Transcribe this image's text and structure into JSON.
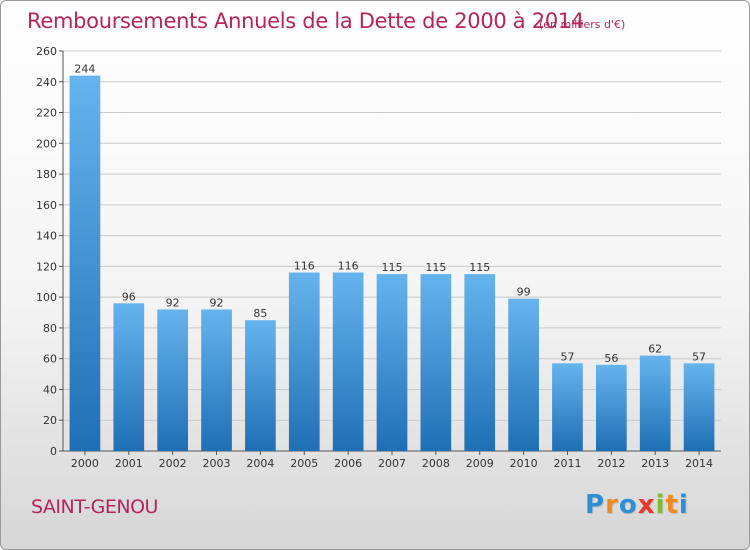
{
  "chart_data": {
    "type": "bar",
    "title": "Remboursements Annuels de la Dette de 2000 à 2014",
    "subtitle": "(en milliers d'€)",
    "categories": [
      "2000",
      "2001",
      "2002",
      "2003",
      "2004",
      "2005",
      "2006",
      "2007",
      "2008",
      "2009",
      "2010",
      "2011",
      "2012",
      "2013",
      "2014"
    ],
    "values": [
      244,
      96,
      92,
      92,
      85,
      116,
      116,
      115,
      115,
      115,
      99,
      57,
      56,
      62,
      57
    ],
    "data_labels": [
      "244",
      "96",
      "92",
      "92",
      "85",
      "116",
      "116",
      "115",
      "115",
      "115",
      "99",
      "57",
      "56",
      "62",
      "57"
    ],
    "ylim": [
      0,
      260
    ],
    "y_ticks": [
      "0",
      "20",
      "40",
      "60",
      "80",
      "100",
      "120",
      "140",
      "160",
      "180",
      "200",
      "220",
      "240",
      "260"
    ],
    "xlabel": "",
    "ylabel": "",
    "grid": true,
    "colors": {
      "bar_light": "#66b4ee",
      "bar_dark": "#1f6fb5",
      "grid": "#c9c9c9",
      "axis": "#555555"
    }
  },
  "footer": {
    "commune": "SAINT-GENOU",
    "logo_letters": [
      "P",
      "r",
      "o",
      "x",
      "i",
      "t",
      "i"
    ],
    "logo_colors": [
      "#2e8fd4",
      "#f08a1c",
      "#2e8fd4",
      "#e63a2e",
      "#7bbf2a",
      "#f08a1c",
      "#2e8fd4"
    ]
  }
}
